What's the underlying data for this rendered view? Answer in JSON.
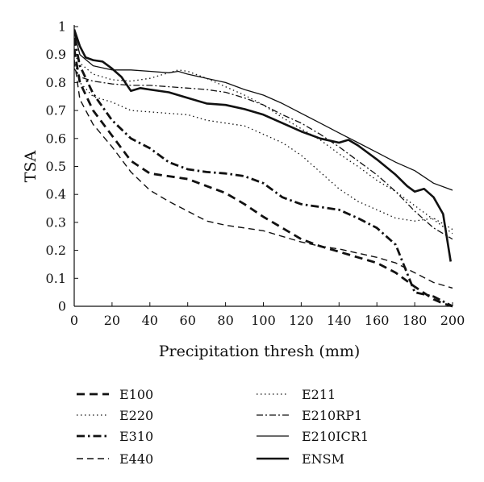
{
  "chart_data": {
    "type": "line",
    "title": "",
    "xlabel": "Precipitation thresh (mm)",
    "ylabel": "TSA",
    "xlim": [
      0,
      200
    ],
    "ylim": [
      0,
      1
    ],
    "xticks": [
      "0",
      "20",
      "40",
      "60",
      "80",
      "100",
      "120",
      "140",
      "160",
      "180",
      "200"
    ],
    "yticks": [
      "0",
      "0.1",
      "0.2",
      "0.3",
      "0.4",
      "0.5",
      "0.6",
      "0.7",
      "0.8",
      "0.9",
      "1"
    ],
    "grid": false,
    "legend_position": "bottom",
    "series": [
      {
        "name": "E100",
        "style": "dashed-bold",
        "x": [
          0,
          3,
          10,
          20,
          30,
          40,
          50,
          60,
          70,
          80,
          90,
          100,
          110,
          120,
          130,
          140,
          150,
          160,
          170,
          180,
          190,
          195,
          200
        ],
        "y": [
          0.92,
          0.8,
          0.7,
          0.61,
          0.52,
          0.475,
          0.465,
          0.455,
          0.43,
          0.405,
          0.365,
          0.32,
          0.28,
          0.24,
          0.215,
          0.195,
          0.175,
          0.155,
          0.12,
          0.07,
          0.025,
          0.01,
          0.0
        ]
      },
      {
        "name": "E220",
        "style": "dotted",
        "x": [
          0,
          3,
          10,
          20,
          30,
          40,
          50,
          60,
          70,
          80,
          90,
          100,
          110,
          120,
          130,
          140,
          150,
          160,
          170,
          180,
          190,
          200
        ],
        "y": [
          0.88,
          0.8,
          0.75,
          0.73,
          0.7,
          0.695,
          0.69,
          0.685,
          0.665,
          0.655,
          0.645,
          0.615,
          0.585,
          0.54,
          0.48,
          0.42,
          0.375,
          0.345,
          0.315,
          0.305,
          0.315,
          0.275
        ]
      },
      {
        "name": "E310",
        "style": "dashdot-bold",
        "x": [
          0,
          3,
          10,
          20,
          30,
          40,
          50,
          60,
          70,
          80,
          90,
          100,
          110,
          120,
          130,
          140,
          150,
          160,
          170,
          180,
          190,
          200
        ],
        "y": [
          0.96,
          0.86,
          0.76,
          0.665,
          0.6,
          0.565,
          0.515,
          0.49,
          0.48,
          0.475,
          0.465,
          0.44,
          0.39,
          0.365,
          0.355,
          0.345,
          0.315,
          0.28,
          0.22,
          0.05,
          0.035,
          0.0
        ]
      },
      {
        "name": "E440",
        "style": "dashed",
        "x": [
          0,
          3,
          10,
          20,
          30,
          40,
          50,
          60,
          70,
          80,
          90,
          100,
          110,
          120,
          130,
          140,
          150,
          160,
          170,
          180,
          190,
          200
        ],
        "y": [
          0.88,
          0.74,
          0.65,
          0.57,
          0.48,
          0.415,
          0.375,
          0.34,
          0.305,
          0.29,
          0.28,
          0.27,
          0.25,
          0.23,
          0.215,
          0.205,
          0.19,
          0.175,
          0.155,
          0.12,
          0.085,
          0.065
        ]
      },
      {
        "name": "E211",
        "style": "dotted",
        "x": [
          0,
          3,
          10,
          20,
          30,
          40,
          50,
          55,
          60,
          70,
          80,
          90,
          100,
          110,
          120,
          130,
          140,
          150,
          160,
          170,
          180,
          190,
          200
        ],
        "y": [
          0.9,
          0.87,
          0.83,
          0.81,
          0.805,
          0.815,
          0.835,
          0.845,
          0.84,
          0.815,
          0.785,
          0.755,
          0.72,
          0.675,
          0.635,
          0.595,
          0.545,
          0.5,
          0.45,
          0.41,
          0.36,
          0.31,
          0.26
        ]
      },
      {
        "name": "E210RP1",
        "style": "dashdot",
        "x": [
          0,
          3,
          10,
          20,
          30,
          40,
          50,
          60,
          70,
          80,
          90,
          100,
          110,
          120,
          130,
          140,
          150,
          160,
          170,
          180,
          190,
          200
        ],
        "y": [
          0.85,
          0.82,
          0.805,
          0.795,
          0.79,
          0.79,
          0.785,
          0.78,
          0.775,
          0.765,
          0.745,
          0.72,
          0.685,
          0.655,
          0.615,
          0.57,
          0.52,
          0.47,
          0.41,
          0.34,
          0.28,
          0.24
        ]
      },
      {
        "name": "E210ICR1",
        "style": "solid",
        "x": [
          0,
          3,
          10,
          20,
          30,
          40,
          50,
          55,
          60,
          70,
          80,
          90,
          100,
          110,
          120,
          130,
          140,
          150,
          160,
          170,
          180,
          190,
          200
        ],
        "y": [
          0.98,
          0.9,
          0.86,
          0.845,
          0.845,
          0.84,
          0.835,
          0.84,
          0.83,
          0.815,
          0.8,
          0.775,
          0.755,
          0.725,
          0.69,
          0.655,
          0.62,
          0.585,
          0.55,
          0.515,
          0.485,
          0.44,
          0.415
        ]
      },
      {
        "name": "ENSM",
        "style": "solid-bold",
        "x": [
          0,
          3,
          6,
          10,
          15,
          20,
          25,
          30,
          35,
          40,
          50,
          60,
          70,
          80,
          90,
          100,
          110,
          120,
          130,
          140,
          145,
          150,
          160,
          170,
          176,
          180,
          185,
          190,
          195,
          199
        ],
        "y": [
          0.99,
          0.93,
          0.89,
          0.88,
          0.875,
          0.85,
          0.82,
          0.77,
          0.78,
          0.775,
          0.765,
          0.745,
          0.725,
          0.72,
          0.705,
          0.685,
          0.655,
          0.625,
          0.6,
          0.585,
          0.595,
          0.575,
          0.525,
          0.47,
          0.43,
          0.41,
          0.42,
          0.39,
          0.33,
          0.16
        ]
      }
    ]
  }
}
